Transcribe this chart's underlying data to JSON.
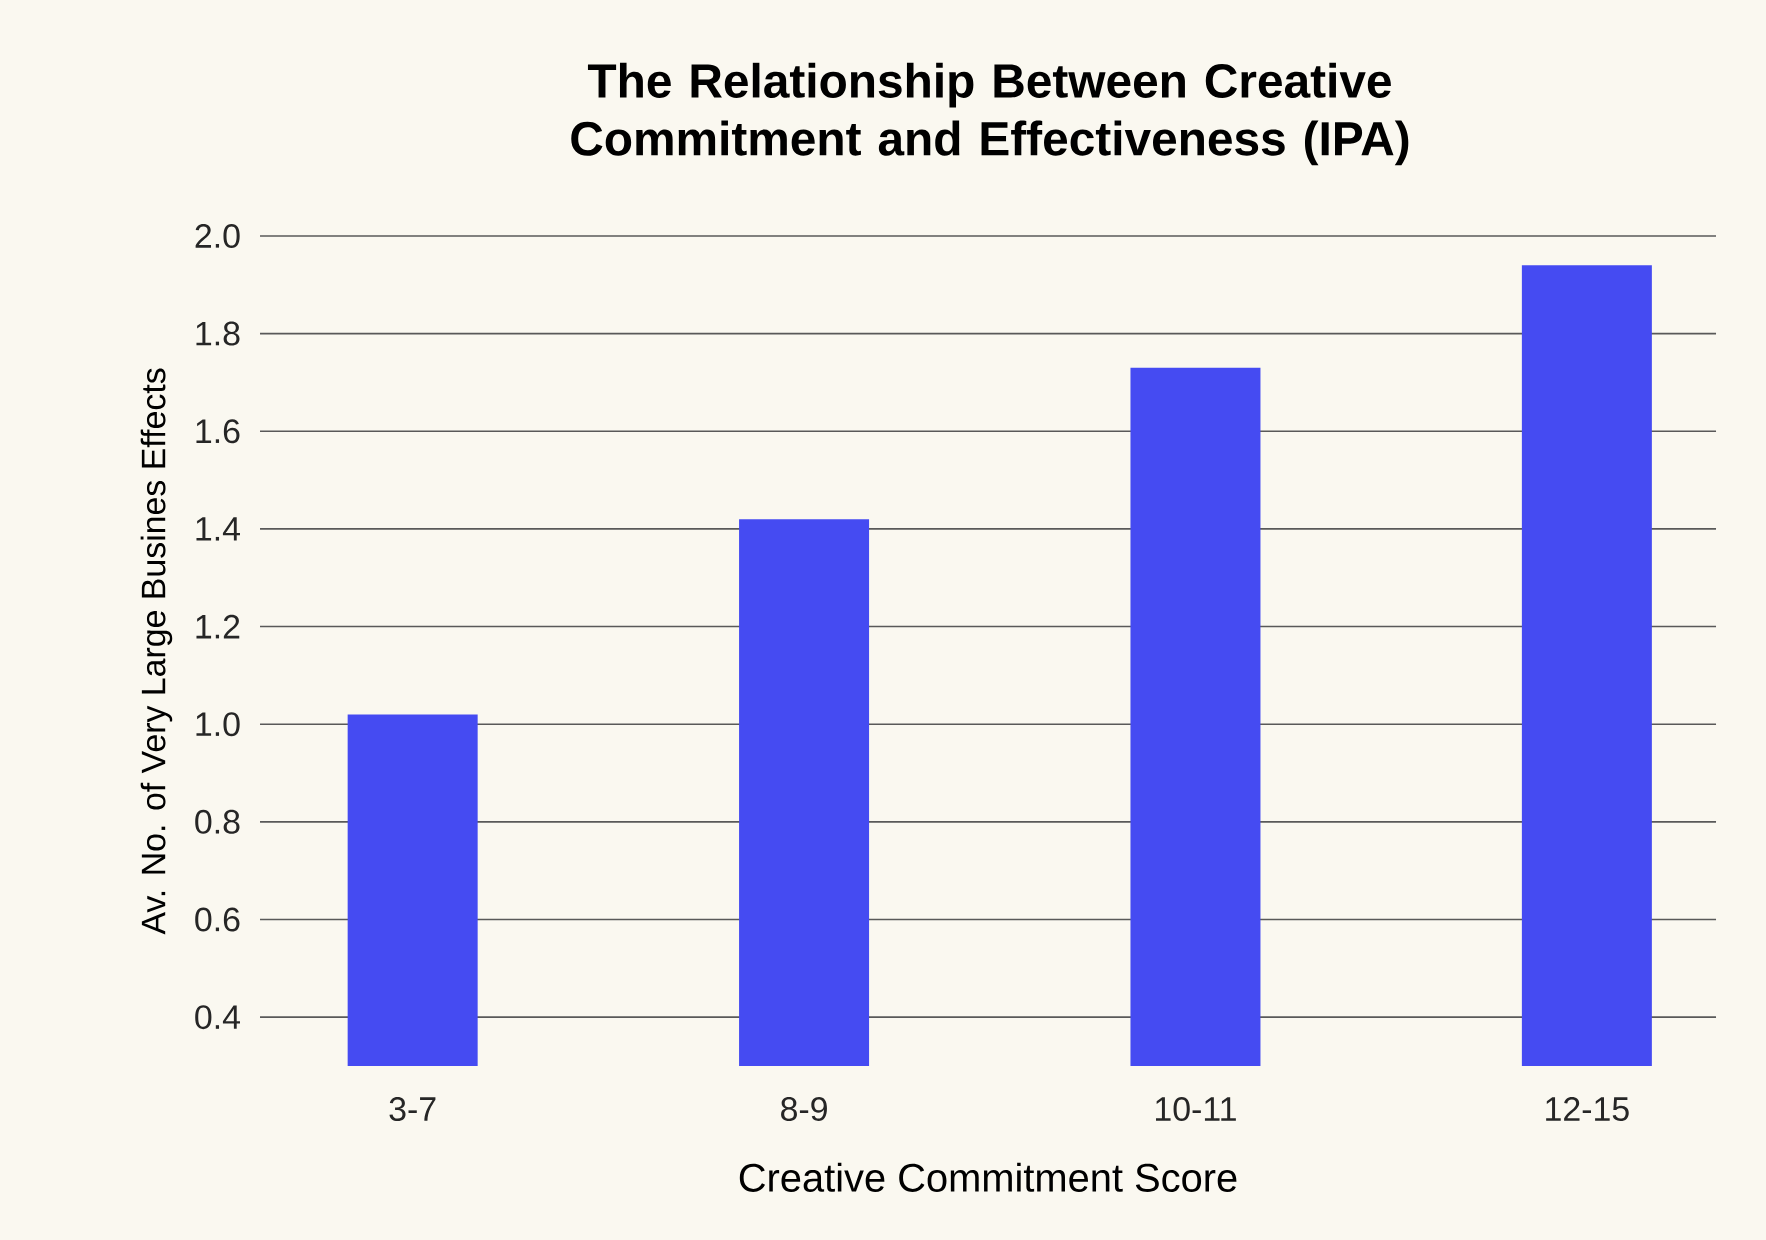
{
  "chart_data": {
    "type": "bar",
    "title": "The Relationship Between Creative Commitment and Effectiveness (IPA)",
    "xlabel": "Creative Commitment Score",
    "ylabel": "Av. No. of Very Large Busines Effects",
    "categories": [
      "3-7",
      "8-9",
      "10-11",
      "12-15"
    ],
    "values": [
      1.02,
      1.42,
      1.73,
      1.94
    ],
    "color": "#454bf2",
    "ylim": [
      0.3,
      2.0
    ],
    "yticks": [
      0.4,
      0.6,
      0.8,
      {
        "value": 1.0,
        "label": "1.0"
      },
      1.2,
      1.4,
      1.6,
      1.8,
      {
        "value": 2.0,
        "label": "2.0"
      }
    ],
    "grid": "y"
  }
}
